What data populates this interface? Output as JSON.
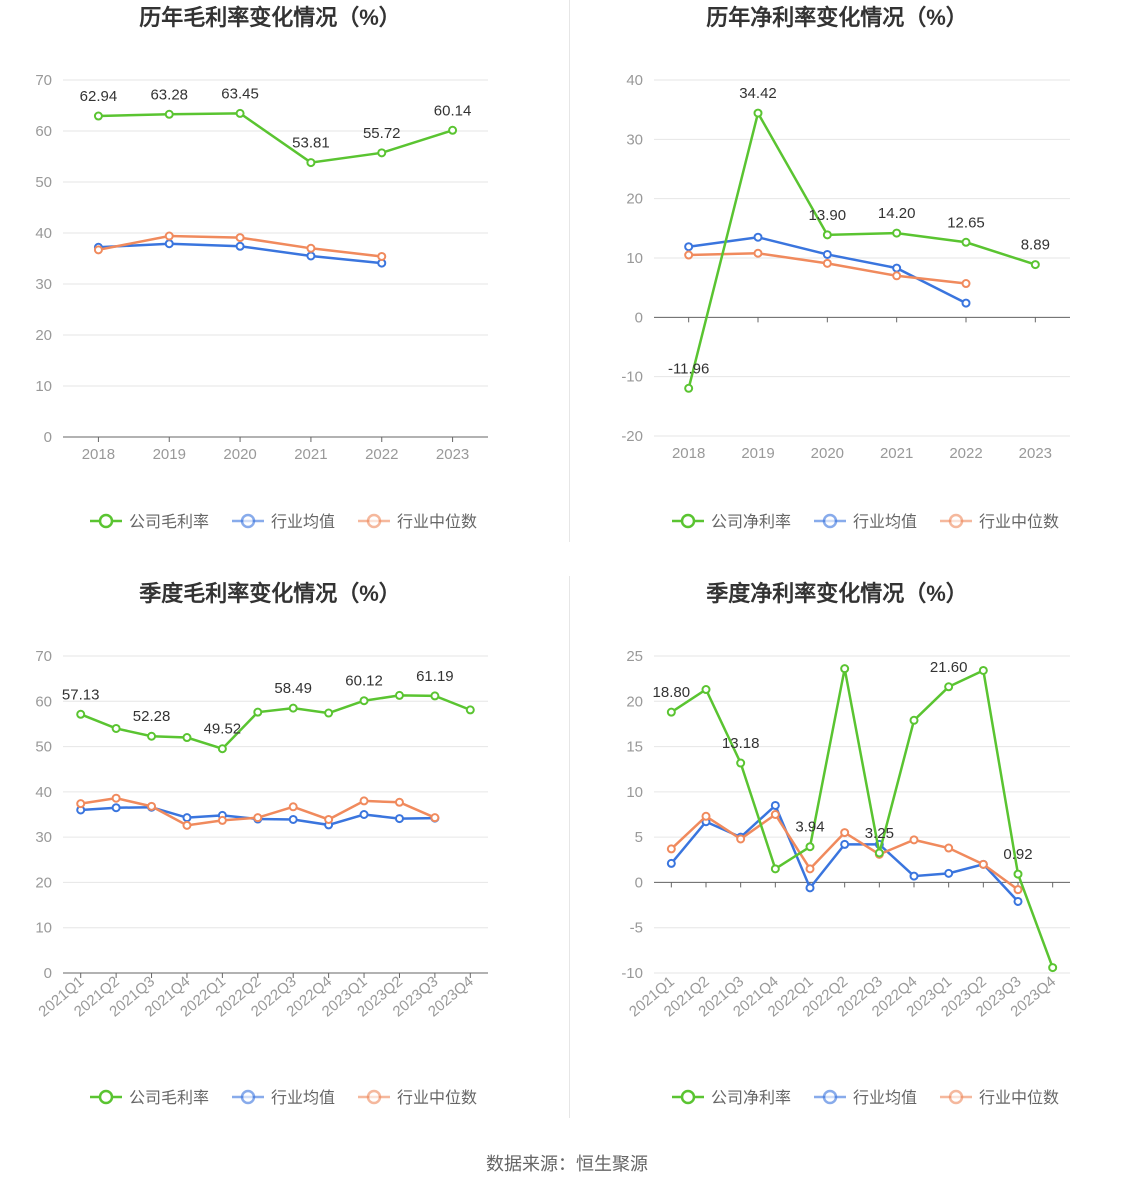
{
  "colors": {
    "company": "#5ac431",
    "avg": "#3a75de",
    "median": "#f08a5d",
    "grid": "#e6e6e6",
    "axis": "#666666"
  },
  "source": "数据来源：恒生聚源",
  "chart_data": [
    {
      "type": "line",
      "title": "历年毛利率变化情况（%）",
      "categories": [
        "2018",
        "2019",
        "2020",
        "2021",
        "2022",
        "2023"
      ],
      "ylim": [
        0,
        70
      ],
      "yticks": [
        "0",
        "10",
        "20",
        "30",
        "40",
        "50",
        "60",
        "70"
      ],
      "grid": true,
      "legend_position": "bottom",
      "series": [
        {
          "name": "公司毛利率",
          "key": "company",
          "values": [
            62.94,
            63.28,
            63.45,
            53.81,
            55.72,
            60.14
          ],
          "labels": [
            "62.94",
            "63.28",
            "63.45",
            "53.81",
            "55.72",
            "60.14"
          ]
        },
        {
          "name": "行业均值",
          "key": "avg",
          "values": [
            37.2,
            37.9,
            37.4,
            35.5,
            34.1,
            null
          ]
        },
        {
          "name": "行业中位数",
          "key": "median",
          "values": [
            36.7,
            39.4,
            39.1,
            37.0,
            35.4,
            null
          ]
        }
      ]
    },
    {
      "type": "line",
      "title": "历年净利率变化情况（%）",
      "categories": [
        "2018",
        "2019",
        "2020",
        "2021",
        "2022",
        "2023"
      ],
      "ylim": [
        -20,
        40
      ],
      "yticks": [
        "-20",
        "-10",
        "0",
        "10",
        "20",
        "30",
        "40"
      ],
      "grid": true,
      "legend_position": "bottom",
      "series": [
        {
          "name": "公司净利率",
          "key": "company",
          "values": [
            -11.96,
            34.42,
            13.9,
            14.2,
            12.65,
            8.89
          ],
          "labels": [
            "-11.96",
            "34.42",
            "13.90",
            "14.20",
            "12.65",
            "8.89"
          ]
        },
        {
          "name": "行业均值",
          "key": "avg",
          "values": [
            11.9,
            13.5,
            10.6,
            8.3,
            2.4,
            null
          ]
        },
        {
          "name": "行业中位数",
          "key": "median",
          "values": [
            10.5,
            10.8,
            9.1,
            7.0,
            5.7,
            null
          ]
        }
      ]
    },
    {
      "type": "line",
      "title": "季度毛利率变化情况（%）",
      "categories": [
        "2021Q1",
        "2021Q2",
        "2021Q3",
        "2021Q4",
        "2022Q1",
        "2022Q2",
        "2022Q3",
        "2022Q4",
        "2023Q1",
        "2023Q2",
        "2023Q3",
        "2023Q4"
      ],
      "ylim": [
        0,
        70
      ],
      "yticks": [
        "0",
        "10",
        "20",
        "30",
        "40",
        "50",
        "60",
        "70"
      ],
      "grid": true,
      "legend_position": "bottom",
      "series": [
        {
          "name": "公司毛利率",
          "key": "company",
          "values": [
            57.13,
            54.0,
            52.28,
            52.0,
            49.52,
            57.6,
            58.49,
            57.4,
            60.12,
            61.3,
            61.19,
            58.1
          ],
          "labels": [
            "57.13",
            "",
            "52.28",
            "",
            "49.52",
            "",
            "58.49",
            "",
            "60.12",
            "",
            "61.19",
            ""
          ]
        },
        {
          "name": "行业均值",
          "key": "avg",
          "values": [
            36.0,
            36.5,
            36.6,
            34.3,
            34.8,
            34.0,
            33.9,
            32.7,
            35.0,
            34.1,
            34.2,
            null
          ]
        },
        {
          "name": "行业中位数",
          "key": "median",
          "values": [
            37.4,
            38.6,
            36.8,
            32.6,
            33.7,
            34.3,
            36.7,
            33.9,
            38.0,
            37.7,
            34.3,
            null
          ]
        }
      ]
    },
    {
      "type": "line",
      "title": "季度净利率变化情况（%）",
      "categories": [
        "2021Q1",
        "2021Q2",
        "2021Q3",
        "2021Q4",
        "2022Q1",
        "2022Q2",
        "2022Q3",
        "2022Q4",
        "2023Q1",
        "2023Q2",
        "2023Q3",
        "2023Q4"
      ],
      "ylim": [
        -10,
        25
      ],
      "yticks": [
        "-10",
        "-5",
        "0",
        "5",
        "10",
        "15",
        "20",
        "25"
      ],
      "grid": true,
      "legend_position": "bottom",
      "series": [
        {
          "name": "公司净利率",
          "key": "company",
          "values": [
            18.8,
            21.3,
            13.18,
            1.5,
            3.94,
            23.6,
            3.25,
            17.9,
            21.6,
            23.4,
            0.92,
            -9.4
          ],
          "labels": [
            "18.80",
            "",
            "13.18",
            "",
            "3.94",
            "",
            "3.25",
            "",
            "21.60",
            "",
            "0.92",
            ""
          ]
        },
        {
          "name": "行业均值",
          "key": "avg",
          "values": [
            2.1,
            6.7,
            5.0,
            8.5,
            -0.6,
            4.2,
            4.2,
            0.7,
            1.0,
            2.0,
            -2.1,
            null
          ]
        },
        {
          "name": "行业中位数",
          "key": "median",
          "values": [
            3.7,
            7.3,
            4.8,
            7.5,
            1.5,
            5.5,
            3.1,
            4.7,
            3.8,
            2.0,
            -0.8,
            null
          ]
        }
      ]
    }
  ]
}
